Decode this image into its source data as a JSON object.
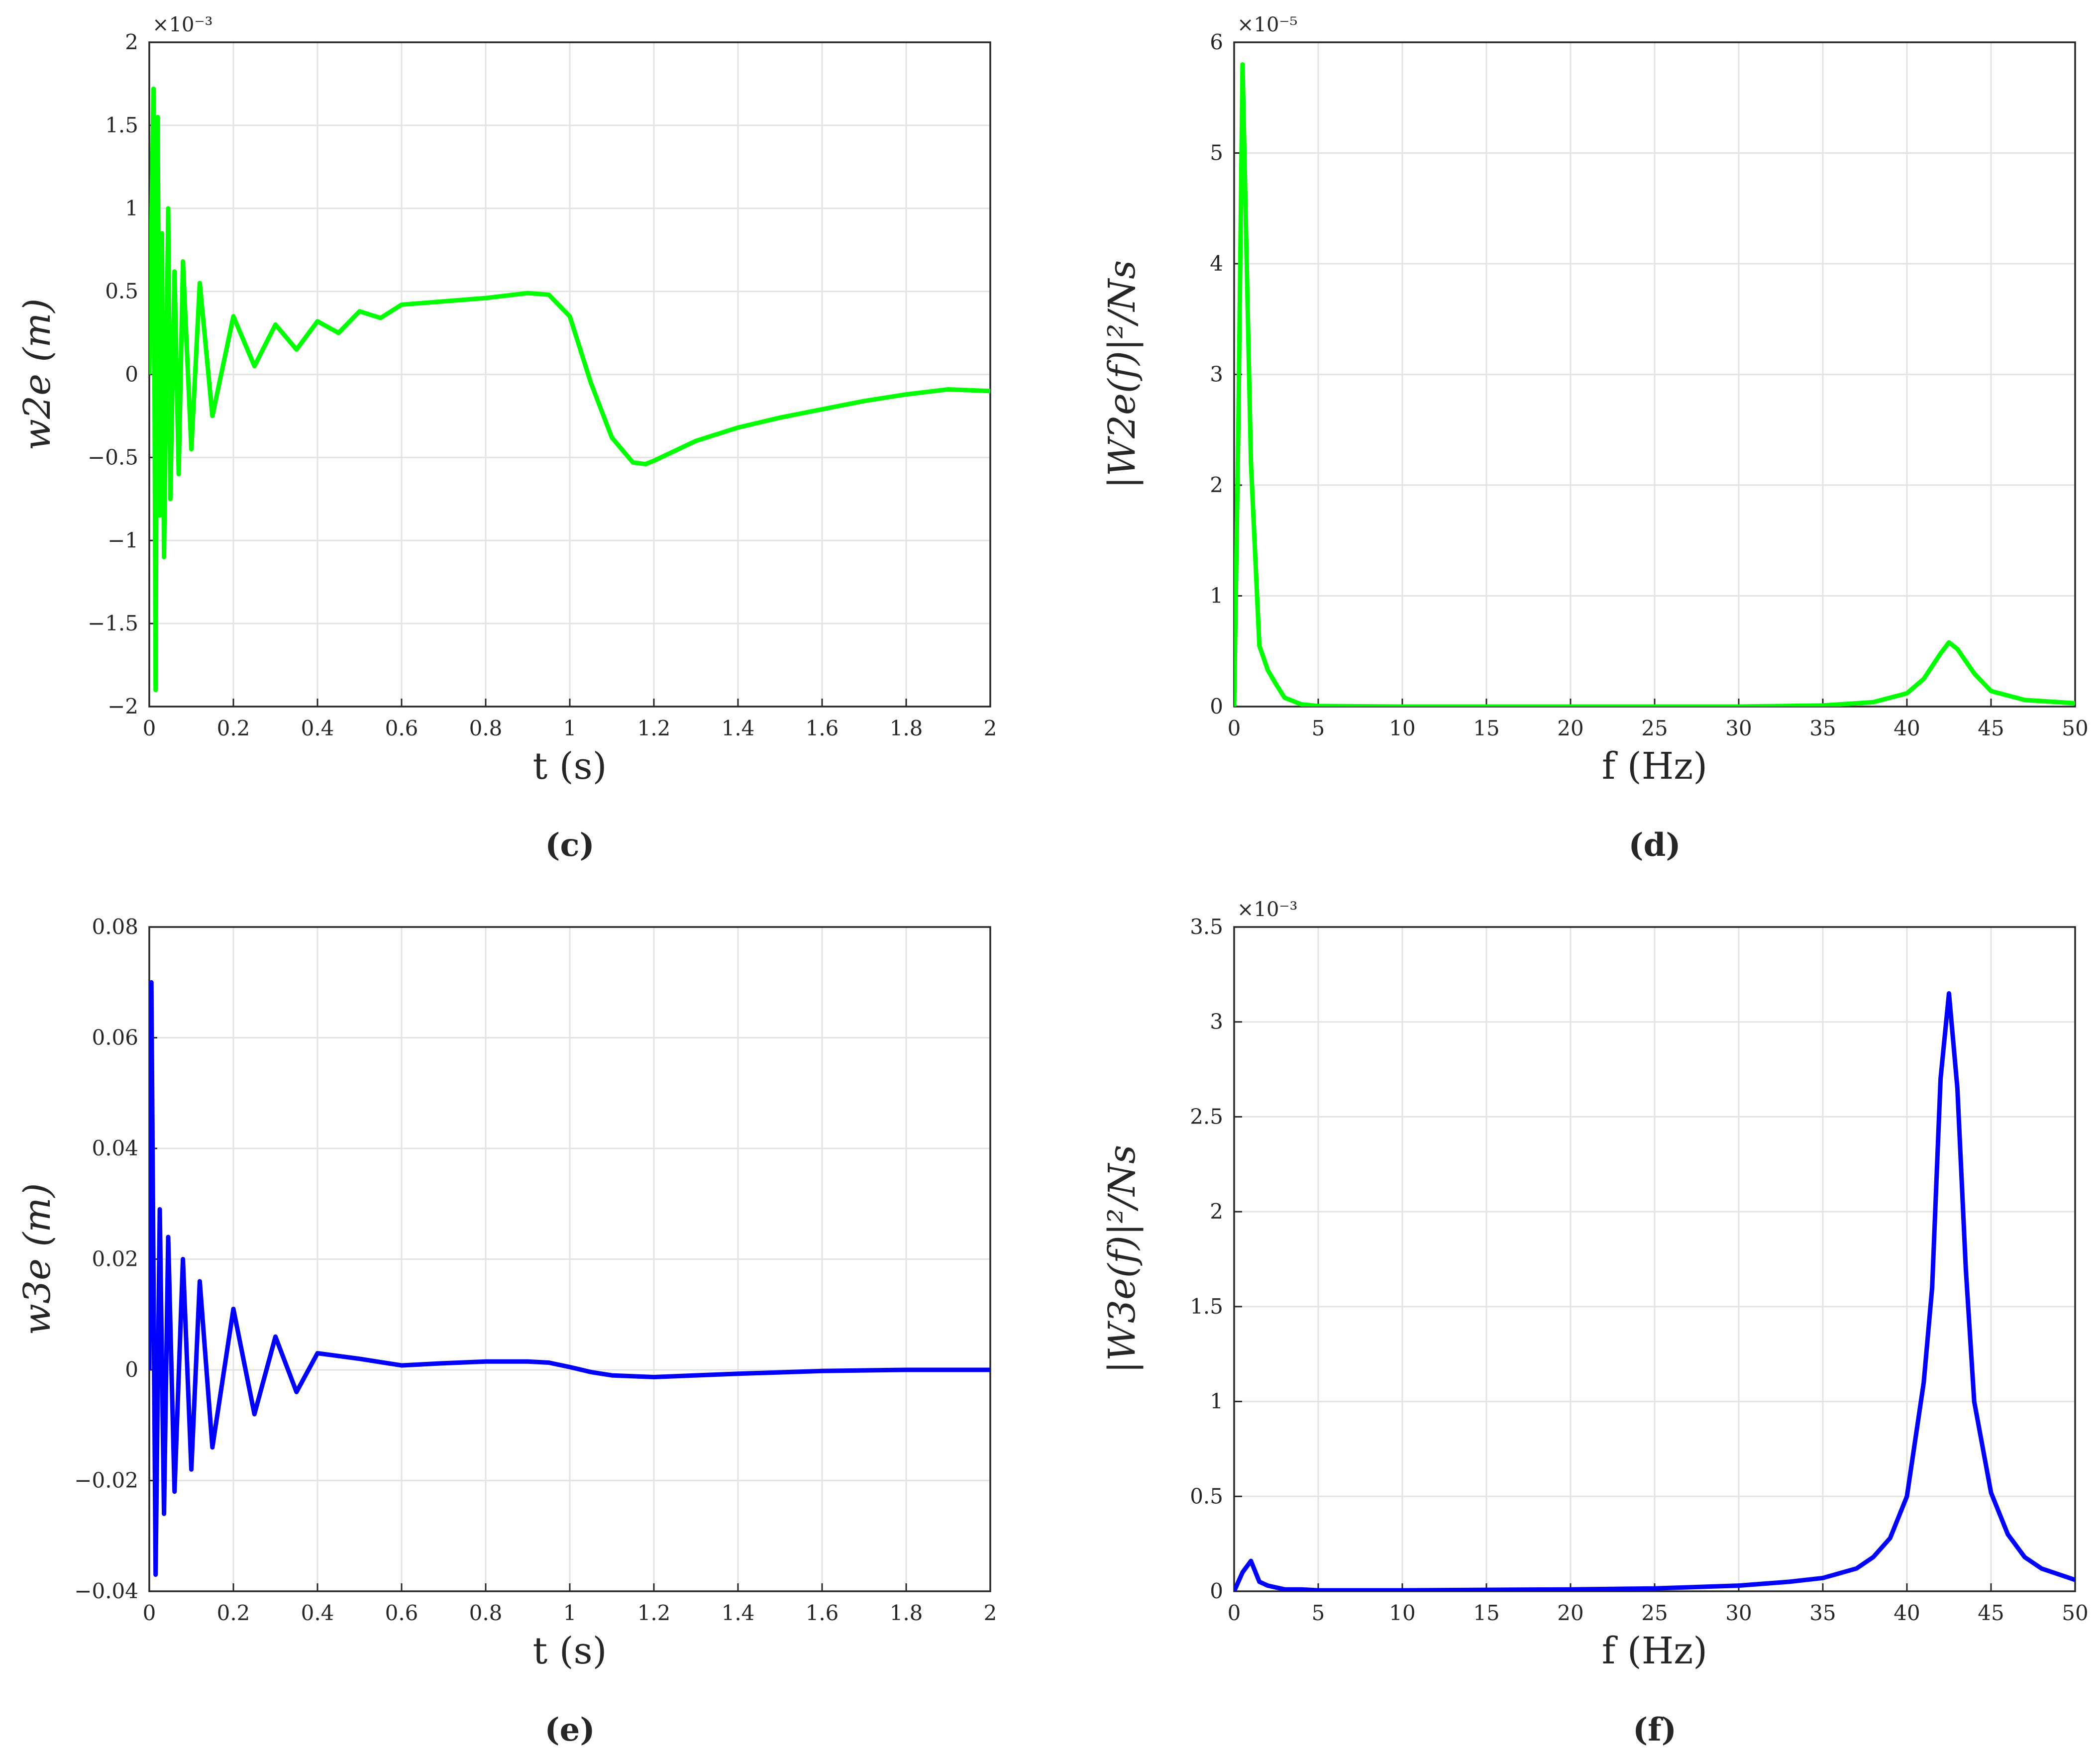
{
  "chart_data": [
    {
      "type": "line",
      "panel_label": "(c)",
      "color": "#00ff00",
      "xlabel": "t (s)",
      "ylabel": "w2e (m)",
      "exponent_label": "×10⁻³",
      "xlim": [
        0,
        2
      ],
      "ylim": [
        -2,
        2
      ],
      "xticks": [
        "0",
        "0.2",
        "0.4",
        "0.6",
        "0.8",
        "1",
        "1.2",
        "1.4",
        "1.6",
        "1.8",
        "2"
      ],
      "yticks": [
        "−2",
        "−1.5",
        "−1",
        "−0.5",
        "0",
        "0.5",
        "1",
        "1.5",
        "2"
      ],
      "grid": true,
      "series": [
        {
          "x": [
            0,
            0.01,
            0.015,
            0.02,
            0.025,
            0.03,
            0.035,
            0.045,
            0.05,
            0.06,
            0.07,
            0.08,
            0.1,
            0.12,
            0.15,
            0.2,
            0.25,
            0.3,
            0.35,
            0.4,
            0.45,
            0.5,
            0.55,
            0.6,
            0.7,
            0.8,
            0.9,
            0.95,
            1.0,
            1.05,
            1.1,
            1.15,
            1.18,
            1.2,
            1.3,
            1.4,
            1.5,
            1.6,
            1.7,
            1.8,
            1.9,
            2.0
          ],
          "y": [
            0,
            1.72,
            -1.9,
            1.55,
            -0.85,
            0.85,
            -1.1,
            1.0,
            -0.75,
            0.62,
            -0.6,
            0.68,
            -0.45,
            0.55,
            -0.25,
            0.35,
            0.05,
            0.3,
            0.15,
            0.32,
            0.25,
            0.38,
            0.34,
            0.42,
            0.44,
            0.46,
            0.49,
            0.48,
            0.35,
            -0.05,
            -0.38,
            -0.53,
            -0.54,
            -0.52,
            -0.4,
            -0.32,
            -0.26,
            -0.21,
            -0.16,
            -0.12,
            -0.09,
            -0.1
          ]
        }
      ]
    },
    {
      "type": "line",
      "panel_label": "(d)",
      "color": "#00ff00",
      "xlabel": "f (Hz)",
      "ylabel": "|W2e(f)|²/Ns",
      "exponent_label": "×10⁻⁵",
      "xlim": [
        0,
        50
      ],
      "ylim": [
        0,
        6
      ],
      "xticks": [
        "0",
        "5",
        "10",
        "15",
        "20",
        "25",
        "30",
        "35",
        "40",
        "45",
        "50"
      ],
      "yticks": [
        "0",
        "1",
        "2",
        "3",
        "4",
        "5",
        "6"
      ],
      "grid": true,
      "series": [
        {
          "x": [
            0,
            0.25,
            0.5,
            0.75,
            1.0,
            1.5,
            2.0,
            2.5,
            3.0,
            4.0,
            5.0,
            10,
            20,
            30,
            35,
            38,
            40,
            41,
            42,
            42.5,
            43,
            44,
            45,
            47,
            50
          ],
          "y": [
            0,
            2.5,
            5.8,
            4.0,
            2.2,
            0.55,
            0.33,
            0.2,
            0.08,
            0.02,
            0.005,
            0,
            0,
            0,
            0.01,
            0.04,
            0.12,
            0.25,
            0.48,
            0.58,
            0.52,
            0.3,
            0.14,
            0.06,
            0.03
          ]
        }
      ]
    },
    {
      "type": "line",
      "panel_label": "(e)",
      "color": "#0000ff",
      "xlabel": "t (s)",
      "ylabel": "w3e (m)",
      "exponent_label": "",
      "xlim": [
        0,
        2
      ],
      "ylim": [
        -0.04,
        0.08
      ],
      "xticks": [
        "0",
        "0.2",
        "0.4",
        "0.6",
        "0.8",
        "1",
        "1.2",
        "1.4",
        "1.6",
        "1.8",
        "2"
      ],
      "yticks": [
        "−0.04",
        "−0.02",
        "0",
        "0.02",
        "0.04",
        "0.06",
        "0.08"
      ],
      "grid": true,
      "series": [
        {
          "x": [
            0,
            0.005,
            0.015,
            0.025,
            0.035,
            0.045,
            0.06,
            0.08,
            0.1,
            0.12,
            0.15,
            0.2,
            0.25,
            0.3,
            0.35,
            0.4,
            0.5,
            0.6,
            0.7,
            0.8,
            0.9,
            0.95,
            1.0,
            1.05,
            1.1,
            1.2,
            1.3,
            1.4,
            1.6,
            1.8,
            2.0
          ],
          "y": [
            0,
            0.07,
            -0.037,
            0.029,
            -0.026,
            0.024,
            -0.022,
            0.02,
            -0.018,
            0.016,
            -0.014,
            0.011,
            -0.008,
            0.006,
            -0.004,
            0.003,
            0.002,
            0.0008,
            0.0012,
            0.0015,
            0.0015,
            0.0013,
            0.0005,
            -0.0004,
            -0.001,
            -0.0013,
            -0.001,
            -0.0007,
            -0.0002,
            0,
            0
          ]
        }
      ]
    },
    {
      "type": "line",
      "panel_label": "(f)",
      "color": "#0000ff",
      "xlabel": "f (Hz)",
      "ylabel": "|W3e(f)|²/Ns",
      "exponent_label": "×10⁻³",
      "xlim": [
        0,
        50
      ],
      "ylim": [
        0,
        3.5
      ],
      "xticks": [
        "0",
        "5",
        "10",
        "15",
        "20",
        "25",
        "30",
        "35",
        "40",
        "45",
        "50"
      ],
      "yticks": [
        "0",
        "0.5",
        "1",
        "1.5",
        "2",
        "2.5",
        "3",
        "3.5"
      ],
      "grid": true,
      "series": [
        {
          "x": [
            0,
            0.5,
            1.0,
            1.5,
            2.0,
            3.0,
            4.0,
            5.0,
            10,
            20,
            25,
            30,
            33,
            35,
            37,
            38,
            39,
            40,
            41,
            41.5,
            42,
            42.5,
            43,
            43.5,
            44,
            45,
            46,
            47,
            48,
            50
          ],
          "y": [
            0,
            0.1,
            0.16,
            0.05,
            0.03,
            0.01,
            0.01,
            0.005,
            0.005,
            0.01,
            0.015,
            0.03,
            0.05,
            0.07,
            0.12,
            0.18,
            0.28,
            0.5,
            1.1,
            1.6,
            2.7,
            3.15,
            2.65,
            1.7,
            1.0,
            0.52,
            0.3,
            0.18,
            0.12,
            0.06
          ]
        }
      ]
    }
  ]
}
